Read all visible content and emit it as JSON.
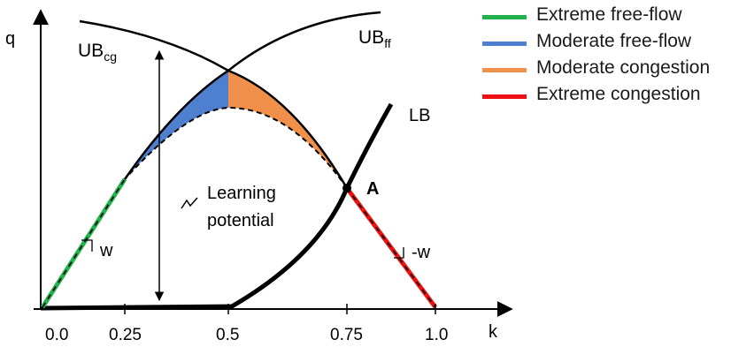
{
  "axes": {
    "y_label": "q",
    "x_label": "k",
    "x_ticks": [
      "0.0",
      "0.25",
      "0.5",
      "0.75",
      "1.0"
    ]
  },
  "curves": {
    "ub_cg": {
      "main": "UB",
      "sub": "cg"
    },
    "ub_ff": {
      "main": "UB",
      "sub": "ff"
    },
    "lb": "LB"
  },
  "annotations": {
    "point_a": "A",
    "slope_left": "w",
    "slope_right": "-w",
    "learning_line1": "Learning",
    "learning_line2": "potential"
  },
  "legend": [
    {
      "label": "Extreme free-flow",
      "color": "#22b24c"
    },
    {
      "label": "Moderate free-flow",
      "color": "#4f7fcf"
    },
    {
      "label": "Moderate congestion",
      "color": "#f0904a"
    },
    {
      "label": "Extreme congestion",
      "color": "#ee1111"
    }
  ],
  "colors": {
    "extreme_free_flow": "#22b24c",
    "moderate_free_flow": "#4f7fcf",
    "moderate_congestion": "#f0904a",
    "extreme_congestion": "#ee1111"
  }
}
